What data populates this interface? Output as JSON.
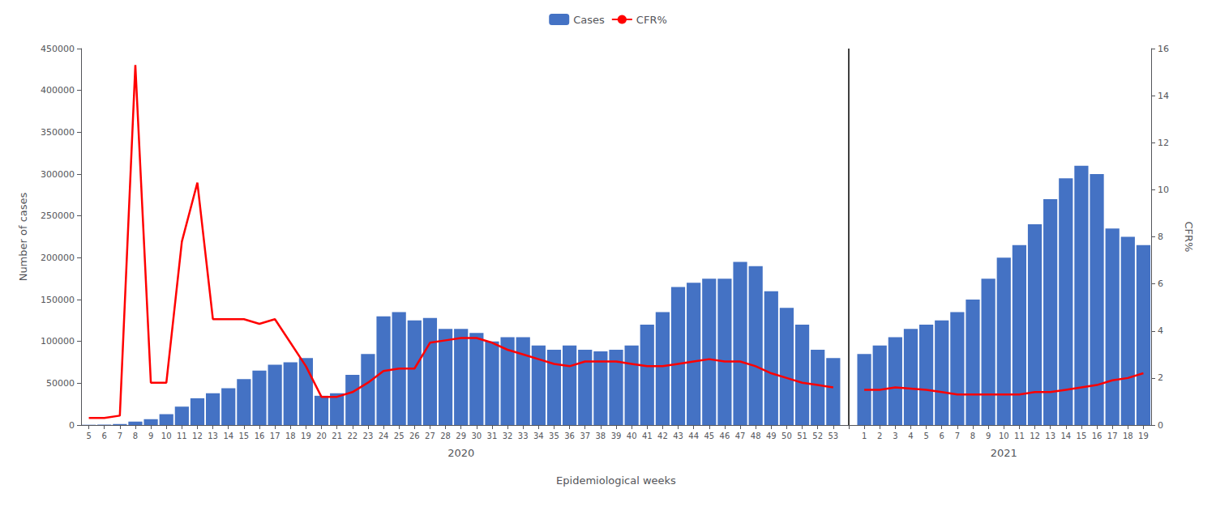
{
  "chart_data": {
    "type": "bar",
    "xlabel": "Epidemiological weeks",
    "ylabel": "Number of cases",
    "y2label": "CFR%",
    "categories": [
      "5",
      "6",
      "7",
      "8",
      "9",
      "10",
      "11",
      "12",
      "13",
      "14",
      "15",
      "16",
      "17",
      "18",
      "19",
      "20",
      "21",
      "22",
      "23",
      "24",
      "25",
      "26",
      "27",
      "28",
      "29",
      "30",
      "31",
      "32",
      "33",
      "34",
      "35",
      "36",
      "37",
      "38",
      "39",
      "40",
      "41",
      "42",
      "43",
      "44",
      "45",
      "46",
      "47",
      "48",
      "49",
      "50",
      "51",
      "52",
      "53",
      null,
      "1",
      "2",
      "3",
      "4",
      "5",
      "6",
      "7",
      "8",
      "9",
      "10",
      "11",
      "12",
      "13",
      "14",
      "15",
      "16",
      "17",
      "18",
      "19"
    ],
    "series": [
      {
        "name": "Cases",
        "type": "bar",
        "color": "#4472C4",
        "values": [
          300,
          500,
          1200,
          4000,
          7000,
          13000,
          22000,
          32000,
          38000,
          44000,
          55000,
          65000,
          72000,
          75000,
          80000,
          35000,
          38000,
          60000,
          85000,
          130000,
          135000,
          125000,
          128000,
          115000,
          115000,
          110000,
          100000,
          105000,
          105000,
          95000,
          90000,
          95000,
          90000,
          88000,
          90000,
          95000,
          120000,
          135000,
          165000,
          170000,
          175000,
          175000,
          195000,
          190000,
          160000,
          140000,
          120000,
          90000,
          80000,
          null,
          85000,
          95000,
          105000,
          115000,
          120000,
          125000,
          135000,
          150000,
          175000,
          200000,
          215000,
          240000,
          270000,
          295000,
          310000,
          300000,
          235000,
          225000,
          215000
        ]
      },
      {
        "name": "CFR%",
        "type": "line",
        "color": "red",
        "axis": "y2",
        "values": [
          0.3,
          0.3,
          0.4,
          15.3,
          1.8,
          1.8,
          7.8,
          10.3,
          4.5,
          4.5,
          4.5,
          4.3,
          4.5,
          3.5,
          2.5,
          1.2,
          1.2,
          1.4,
          1.8,
          2.3,
          2.4,
          2.4,
          3.5,
          3.6,
          3.7,
          3.7,
          3.5,
          3.2,
          3.0,
          2.8,
          2.6,
          2.5,
          2.7,
          2.7,
          2.7,
          2.6,
          2.5,
          2.5,
          2.6,
          2.7,
          2.8,
          2.7,
          2.7,
          2.5,
          2.2,
          2.0,
          1.8,
          1.7,
          1.6,
          null,
          1.5,
          1.5,
          1.6,
          1.55,
          1.5,
          1.4,
          1.3,
          1.3,
          1.3,
          1.3,
          1.3,
          1.4,
          1.4,
          1.5,
          1.6,
          1.7,
          1.9,
          2.0,
          2.2
        ]
      }
    ],
    "ylim": [
      0,
      450000
    ],
    "yticks": [
      0,
      50000,
      100000,
      150000,
      200000,
      250000,
      300000,
      350000,
      400000,
      450000
    ],
    "y2lim": [
      0,
      16
    ],
    "y2ticks": [
      0,
      2,
      4,
      6,
      8,
      10,
      12,
      14,
      16
    ],
    "annotations": [
      "2020",
      "2021"
    ],
    "legend": "top",
    "grid": false
  }
}
